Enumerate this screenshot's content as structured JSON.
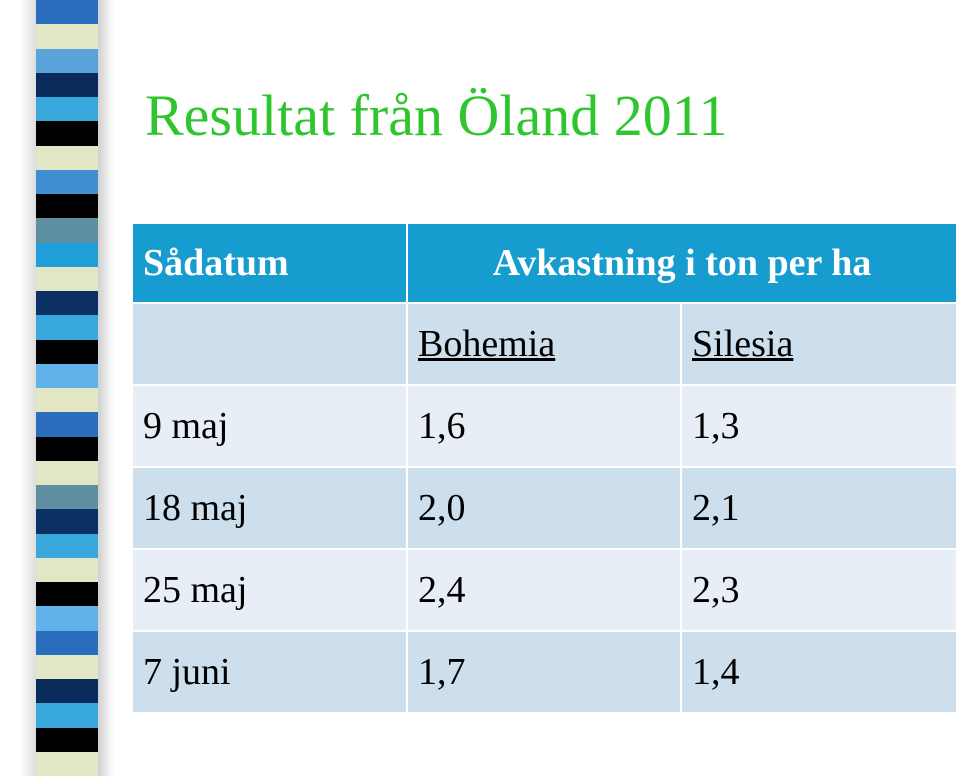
{
  "title": "Resultat från Öland 2011",
  "table": {
    "header": {
      "col1": "Sådatum",
      "group": "Avkastning i ton per ha"
    },
    "subheader": {
      "col2": "Bohemia",
      "col3": "Silesia"
    },
    "rows": [
      {
        "date": "9 maj",
        "bohemia": "1,6",
        "silesia": "1,3"
      },
      {
        "date": "18 maj",
        "bohemia": "2,0",
        "silesia": "2,1"
      },
      {
        "date": "25 maj",
        "bohemia": "2,4",
        "silesia": "2,3"
      },
      {
        "date": "7 juni",
        "bohemia": "1,7",
        "silesia": "1,4"
      }
    ]
  },
  "colors": {
    "title": "#2fc52f",
    "header_bg": "#179ccf",
    "row_light": "#e7eef6",
    "row_dark": "#cddfec",
    "stripes": [
      "#2b6dbd",
      "#e3e6c4",
      "#5aa3d9",
      "#0a2a5c",
      "#38a7dc",
      "#000000",
      "#e3e6c4",
      "#3d8fd1",
      "#000000",
      "#5d8fa0",
      "#1e9fd8",
      "#e3e6c4",
      "#0b3063",
      "#38a7dc",
      "#000000",
      "#5fb3e8",
      "#e3e6c4",
      "#2b6dbd",
      "#000000",
      "#e3e6c4",
      "#5d8fa0",
      "#0b3063",
      "#38a7dc",
      "#e3e6c4",
      "#000000",
      "#5fb3e8",
      "#2b6dbd",
      "#e3e6c4",
      "#0a2a5c",
      "#38a7dc",
      "#000000",
      "#e3e6c4"
    ]
  }
}
